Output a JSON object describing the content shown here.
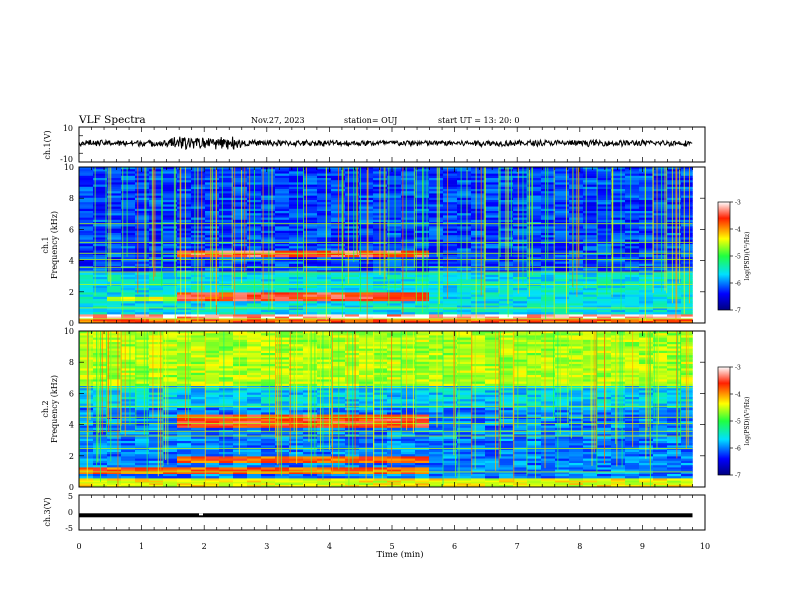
{
  "header": {
    "title": "VLF Spectra",
    "date": "Nov.27, 2023",
    "station": "station= OUJ",
    "start": "start  UT =   13: 20: 0"
  },
  "chart_data": [
    {
      "type": "line",
      "name": "ch1-waveform",
      "ylabel": "ch.1(V)",
      "ylim": [
        -10,
        10
      ],
      "yticks": [
        "10",
        "-10"
      ],
      "x_range_min": [
        0,
        9.8
      ],
      "baseline_v": 0.8
    },
    {
      "type": "heatmap",
      "name": "ch1-spectrogram",
      "ylabel_lines": [
        "ch.1",
        "Frequency  (kHz)"
      ],
      "ylim": [
        0,
        10
      ],
      "yticks": [
        "0",
        "2",
        "4",
        "6",
        "8",
        "10"
      ],
      "x_range_min": [
        0,
        9.8
      ],
      "bands_khz": [
        {
          "from": 0.2,
          "to": 0.5,
          "level": -3.2,
          "t_from": 0,
          "t_to": 9.8
        },
        {
          "from": 1.4,
          "to": 1.9,
          "level": -3.6,
          "t_from": 1.5,
          "t_to": 5.4
        },
        {
          "from": 4.2,
          "to": 4.7,
          "level": -3.5,
          "t_from": 1.5,
          "t_to": 5.4
        },
        {
          "from": 1.4,
          "to": 1.7,
          "level": -4.5,
          "t_from": 0.3,
          "t_to": 1.5
        }
      ],
      "colorbar": {
        "label": "log(PSD)(V²/Hz)",
        "range": [
          -7,
          -3
        ],
        "ticks": [
          "-3",
          "-4",
          "-5",
          "-6",
          "-7"
        ]
      }
    },
    {
      "type": "heatmap",
      "name": "ch2-spectrogram",
      "ylabel_lines": [
        "ch.2",
        "Frequency  (kHz)"
      ],
      "ylim": [
        0,
        10
      ],
      "yticks": [
        "0",
        "2",
        "4",
        "6",
        "8",
        "10"
      ],
      "x_range_min": [
        0,
        9.8
      ],
      "bands_khz": [
        {
          "from": 6.5,
          "to": 10,
          "level": -4.6,
          "t_from": 0,
          "t_to": 9.8
        },
        {
          "from": 3.8,
          "to": 4.6,
          "level": -3.6,
          "t_from": 1.5,
          "t_to": 5.4
        },
        {
          "from": 1.5,
          "to": 1.9,
          "level": -3.8,
          "t_from": 1.5,
          "t_to": 5.4
        },
        {
          "from": 0.9,
          "to": 1.2,
          "level": -3.8,
          "t_from": 0,
          "t_to": 5.4
        }
      ],
      "colorbar": {
        "label": "log(PSD)(V²/Hz)",
        "range": [
          -7,
          -3
        ],
        "ticks": [
          "-3",
          "-4",
          "-5",
          "-6",
          "-7"
        ]
      }
    },
    {
      "type": "line",
      "name": "ch3-waveform",
      "ylabel": "ch.3(V)",
      "ylim": [
        -5,
        5
      ],
      "yticks": [
        "5",
        "0",
        "-5"
      ],
      "x_range_min": [
        0,
        9.8
      ],
      "baseline_v": -0.8
    }
  ],
  "xaxis": {
    "label": "Time  (min)",
    "range": [
      0,
      10
    ],
    "ticks": [
      "0",
      "1",
      "2",
      "3",
      "4",
      "5",
      "6",
      "7",
      "8",
      "9",
      "10"
    ]
  }
}
